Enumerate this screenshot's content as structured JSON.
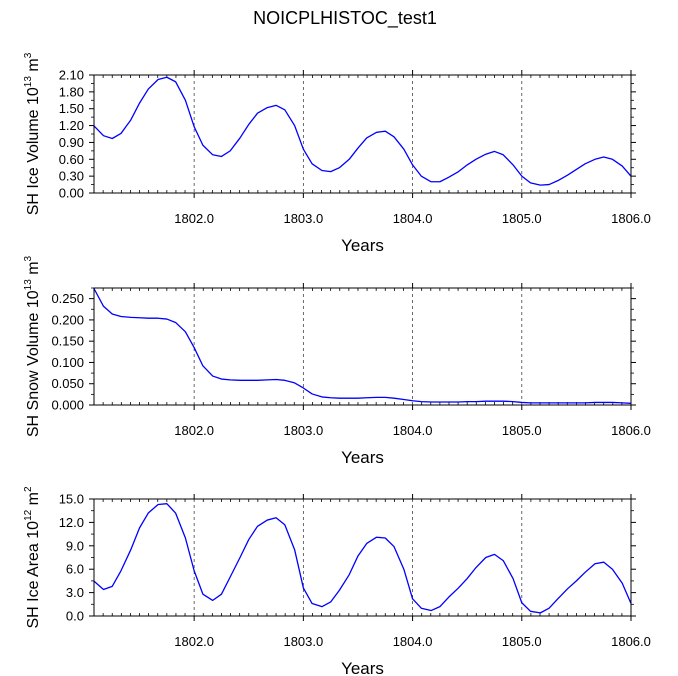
{
  "title": "NOICPLHISTOC_test1",
  "colors": {
    "series": "#0000ff",
    "axis": "#000000",
    "grid": "#444444"
  },
  "chart_data": [
    {
      "type": "line",
      "ylabel": {
        "text": "SH Ice Volume 10",
        "exp": "13",
        "unit": " m",
        "unit_exp": "3"
      },
      "xlabel": "Years",
      "xlim": [
        1801.083,
        1806.0
      ],
      "xticks": [
        1802.0,
        1803.0,
        1804.0,
        1805.0,
        1806.0
      ],
      "xtick_labels": [
        "1802.0",
        "1803.0",
        "1804.0",
        "1805.0",
        "1806.0"
      ],
      "ylim": [
        0,
        2.1
      ],
      "yticks": [
        0,
        0.3,
        0.6,
        0.9,
        1.2,
        1.5,
        1.8,
        2.1
      ],
      "ytick_labels": [
        "0.00",
        "0.30",
        "0.60",
        "0.90",
        "1.20",
        "1.50",
        "1.80",
        "2.10"
      ],
      "grid": "vertical dashed at major x ticks",
      "x": [
        1801.08,
        1801.17,
        1801.25,
        1801.33,
        1801.42,
        1801.5,
        1801.58,
        1801.67,
        1801.75,
        1801.83,
        1801.92,
        1802.0,
        1802.08,
        1802.17,
        1802.25,
        1802.33,
        1802.42,
        1802.5,
        1802.58,
        1802.67,
        1802.75,
        1802.83,
        1802.92,
        1803.0,
        1803.08,
        1803.17,
        1803.25,
        1803.33,
        1803.42,
        1803.5,
        1803.58,
        1803.67,
        1803.75,
        1803.83,
        1803.92,
        1804.0,
        1804.08,
        1804.17,
        1804.25,
        1804.33,
        1804.42,
        1804.5,
        1804.58,
        1804.67,
        1804.75,
        1804.83,
        1804.92,
        1805.0,
        1805.08,
        1805.17,
        1805.25,
        1805.33,
        1805.42,
        1805.5,
        1805.58,
        1805.67,
        1805.75,
        1805.83,
        1805.92,
        1806.0
      ],
      "series": [
        {
          "values": [
            1.2,
            1.02,
            0.97,
            1.06,
            1.3,
            1.6,
            1.85,
            2.02,
            2.06,
            1.98,
            1.65,
            1.18,
            0.85,
            0.68,
            0.65,
            0.75,
            0.98,
            1.22,
            1.42,
            1.52,
            1.56,
            1.48,
            1.2,
            0.78,
            0.52,
            0.4,
            0.38,
            0.45,
            0.6,
            0.8,
            0.98,
            1.08,
            1.1,
            1.0,
            0.78,
            0.5,
            0.3,
            0.2,
            0.2,
            0.28,
            0.38,
            0.5,
            0.6,
            0.69,
            0.74,
            0.68,
            0.5,
            0.3,
            0.18,
            0.14,
            0.15,
            0.22,
            0.32,
            0.42,
            0.52,
            0.6,
            0.64,
            0.6,
            0.48,
            0.3
          ]
        }
      ]
    },
    {
      "type": "line",
      "ylabel": {
        "text": "SH Snow Volume 10",
        "exp": "13",
        "unit": " m",
        "unit_exp": "3"
      },
      "xlabel": "Years",
      "xlim": [
        1801.083,
        1806.0
      ],
      "xticks": [
        1802.0,
        1803.0,
        1804.0,
        1805.0,
        1806.0
      ],
      "xtick_labels": [
        "1802.0",
        "1803.0",
        "1804.0",
        "1805.0",
        "1806.0"
      ],
      "ylim": [
        0,
        0.275
      ],
      "yticks": [
        0,
        0.05,
        0.1,
        0.15,
        0.2,
        0.25
      ],
      "ytick_labels": [
        "0.000",
        "0.050",
        "0.100",
        "0.150",
        "0.200",
        "0.250"
      ],
      "grid": "vertical dashed at major x ticks",
      "x": [
        1801.08,
        1801.17,
        1801.25,
        1801.33,
        1801.42,
        1801.5,
        1801.58,
        1801.67,
        1801.75,
        1801.83,
        1801.92,
        1802.0,
        1802.08,
        1802.17,
        1802.25,
        1802.33,
        1802.42,
        1802.5,
        1802.58,
        1802.67,
        1802.75,
        1802.83,
        1802.92,
        1803.0,
        1803.08,
        1803.17,
        1803.25,
        1803.33,
        1803.42,
        1803.5,
        1803.58,
        1803.67,
        1803.75,
        1803.83,
        1803.92,
        1804.0,
        1804.08,
        1804.17,
        1804.25,
        1804.33,
        1804.42,
        1804.5,
        1804.58,
        1804.67,
        1804.75,
        1804.83,
        1804.92,
        1805.0,
        1805.08,
        1805.17,
        1805.25,
        1805.33,
        1805.42,
        1805.5,
        1805.58,
        1805.67,
        1805.75,
        1805.83,
        1805.92,
        1806.0
      ],
      "series": [
        {
          "values": [
            0.275,
            0.232,
            0.214,
            0.208,
            0.206,
            0.205,
            0.204,
            0.204,
            0.202,
            0.194,
            0.172,
            0.135,
            0.092,
            0.068,
            0.061,
            0.059,
            0.058,
            0.058,
            0.058,
            0.059,
            0.06,
            0.058,
            0.052,
            0.04,
            0.026,
            0.019,
            0.017,
            0.016,
            0.016,
            0.016,
            0.017,
            0.018,
            0.018,
            0.016,
            0.013,
            0.01,
            0.008,
            0.007,
            0.007,
            0.007,
            0.007,
            0.008,
            0.008,
            0.009,
            0.009,
            0.009,
            0.008,
            0.006,
            0.005,
            0.005,
            0.005,
            0.005,
            0.005,
            0.005,
            0.005,
            0.006,
            0.006,
            0.006,
            0.005,
            0.004
          ]
        }
      ]
    },
    {
      "type": "line",
      "ylabel": {
        "text": "SH Ice Area 10",
        "exp": "12",
        "unit": " m",
        "unit_exp": "2"
      },
      "xlabel": "Years",
      "xlim": [
        1801.083,
        1806.0
      ],
      "xticks": [
        1802.0,
        1803.0,
        1804.0,
        1805.0,
        1806.0
      ],
      "xtick_labels": [
        "1802.0",
        "1803.0",
        "1804.0",
        "1805.0",
        "1806.0"
      ],
      "ylim": [
        0,
        15
      ],
      "yticks": [
        0,
        3,
        6,
        9,
        12,
        15
      ],
      "ytick_labels": [
        "0.0",
        "3.0",
        "6.0",
        "9.0",
        "12.0",
        "15.0"
      ],
      "grid": "vertical dashed at major x ticks",
      "x": [
        1801.08,
        1801.17,
        1801.25,
        1801.33,
        1801.42,
        1801.5,
        1801.58,
        1801.67,
        1801.75,
        1801.83,
        1801.92,
        1802.0,
        1802.08,
        1802.17,
        1802.25,
        1802.33,
        1802.42,
        1802.5,
        1802.58,
        1802.67,
        1802.75,
        1802.83,
        1802.92,
        1803.0,
        1803.08,
        1803.17,
        1803.25,
        1803.33,
        1803.42,
        1803.5,
        1803.58,
        1803.67,
        1803.75,
        1803.83,
        1803.92,
        1804.0,
        1804.08,
        1804.17,
        1804.25,
        1804.33,
        1804.42,
        1804.5,
        1804.58,
        1804.67,
        1804.75,
        1804.83,
        1804.92,
        1805.0,
        1805.08,
        1805.17,
        1805.25,
        1805.33,
        1805.42,
        1805.5,
        1805.58,
        1805.67,
        1805.75,
        1805.83,
        1805.92,
        1806.0
      ],
      "series": [
        {
          "values": [
            4.5,
            3.4,
            3.8,
            5.8,
            8.5,
            11.3,
            13.2,
            14.3,
            14.4,
            13.2,
            10.0,
            5.8,
            2.8,
            2.0,
            2.8,
            5.0,
            7.5,
            9.8,
            11.5,
            12.3,
            12.6,
            11.7,
            8.5,
            3.6,
            1.6,
            1.2,
            1.8,
            3.3,
            5.3,
            7.7,
            9.3,
            10.1,
            10.0,
            8.9,
            6.0,
            2.2,
            1.0,
            0.7,
            1.2,
            2.4,
            3.6,
            4.8,
            6.2,
            7.5,
            7.9,
            7.1,
            4.8,
            1.7,
            0.6,
            0.4,
            1.0,
            2.2,
            3.5,
            4.5,
            5.6,
            6.7,
            6.9,
            6.0,
            4.2,
            1.6
          ]
        }
      ]
    }
  ]
}
